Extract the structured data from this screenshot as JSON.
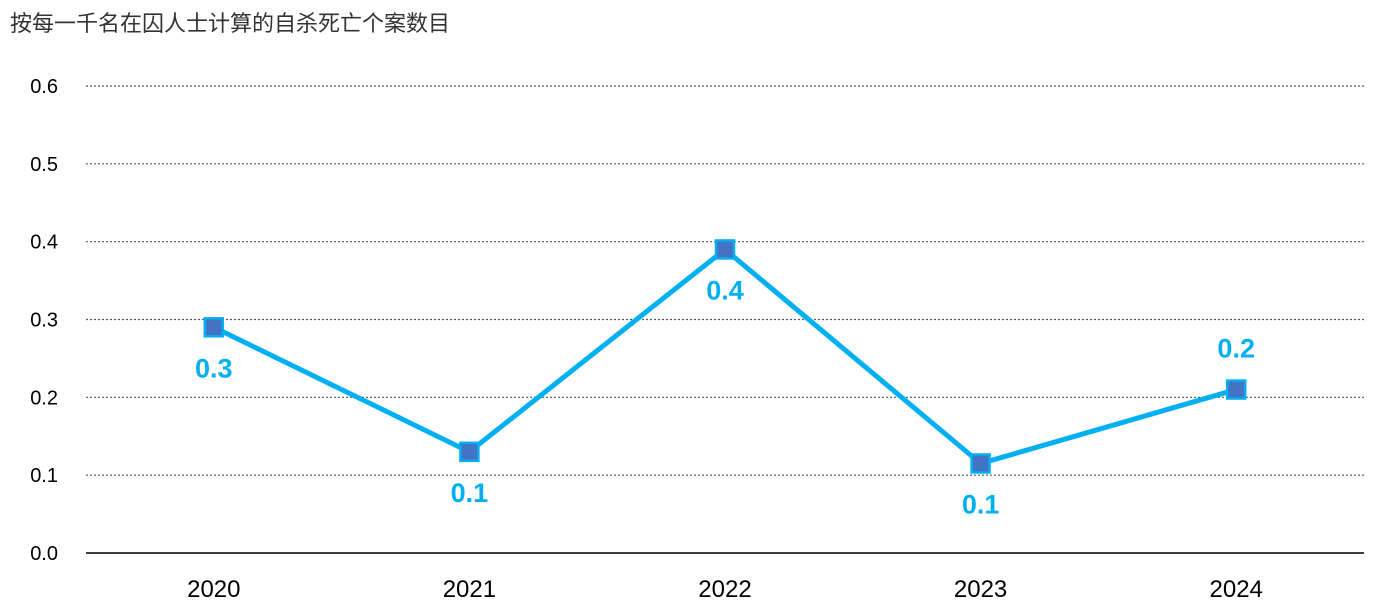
{
  "chart_data": {
    "type": "line",
    "title": "按每一千名在囚人士计算的自杀死亡个案数目",
    "categories": [
      "2020",
      "2021",
      "2022",
      "2023",
      "2024"
    ],
    "series": [
      {
        "values": [
          0.29,
          0.13,
          0.39,
          0.115,
          0.21
        ],
        "data_labels": [
          "0.3",
          "0.1",
          "0.4",
          "0.1",
          "0.2"
        ],
        "label_positions": [
          "below",
          "below",
          "below",
          "below",
          "above"
        ]
      }
    ],
    "ylim": [
      0,
      0.6
    ],
    "yticks": [
      "0.0",
      "0.1",
      "0.2",
      "0.3",
      "0.4",
      "0.5",
      "0.6"
    ],
    "grid": true,
    "colors": {
      "line": "#00B0F0",
      "marker_fill": "#4472C4",
      "marker_edge": "#00B0F0",
      "data_label": "#00B0F0",
      "grid": "#555555",
      "axis": "#000000"
    }
  }
}
